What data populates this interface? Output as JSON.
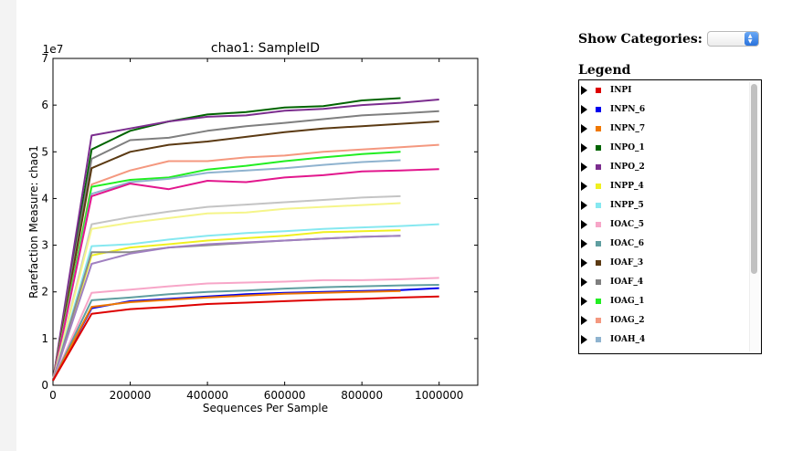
{
  "chart_data": {
    "type": "line",
    "title": "chao1: SampleID",
    "xlabel": "Sequences Per Sample",
    "ylabel": "Rarefaction Measure: chao1",
    "y_multiplier_label": "1e7",
    "xlim": [
      0,
      1100000
    ],
    "ylim": [
      0,
      7
    ],
    "xticks": [
      0,
      200000,
      400000,
      600000,
      800000,
      1000000
    ],
    "xtick_labels": [
      "0",
      "200000",
      "400000",
      "600000",
      "800000",
      "1000000"
    ],
    "yticks": [
      0,
      1,
      2,
      3,
      4,
      5,
      6,
      7
    ],
    "ytick_labels": [
      "0",
      "1",
      "2",
      "3",
      "4",
      "5",
      "6",
      "7"
    ],
    "grid": false,
    "series": [
      {
        "color": "#006400",
        "x": [
          0,
          100000,
          200000,
          300000,
          400000,
          500000,
          600000,
          700000,
          800000,
          900000
        ],
        "values": [
          0.1,
          5.05,
          5.45,
          5.65,
          5.8,
          5.85,
          5.95,
          5.98,
          6.1,
          6.15
        ]
      },
      {
        "color": "#7b2d8e",
        "x": [
          0,
          100000,
          200000,
          300000,
          400000,
          500000,
          600000,
          700000,
          800000,
          900000,
          1000000
        ],
        "values": [
          0.1,
          5.35,
          5.5,
          5.65,
          5.75,
          5.78,
          5.88,
          5.92,
          6.0,
          6.05,
          6.12
        ]
      },
      {
        "color": "#7f7f7f",
        "x": [
          0,
          100000,
          200000,
          300000,
          400000,
          500000,
          600000,
          700000,
          800000,
          900000,
          1000000
        ],
        "values": [
          0.1,
          4.85,
          5.25,
          5.3,
          5.45,
          5.55,
          5.62,
          5.7,
          5.78,
          5.82,
          5.87
        ]
      },
      {
        "color": "#5b3a13",
        "x": [
          0,
          100000,
          200000,
          300000,
          400000,
          500000,
          600000,
          700000,
          800000,
          900000,
          1000000
        ],
        "values": [
          0.1,
          4.65,
          5.0,
          5.15,
          5.22,
          5.32,
          5.42,
          5.5,
          5.55,
          5.6,
          5.65
        ]
      },
      {
        "color": "#f4987f",
        "x": [
          0,
          100000,
          200000,
          300000,
          400000,
          500000,
          600000,
          700000,
          800000,
          900000,
          1000000
        ],
        "values": [
          0.1,
          4.3,
          4.6,
          4.8,
          4.8,
          4.88,
          4.92,
          5.0,
          5.05,
          5.1,
          5.15
        ]
      },
      {
        "color": "#22ee22",
        "x": [
          0,
          100000,
          200000,
          300000,
          400000,
          500000,
          600000,
          700000,
          800000,
          900000
        ],
        "values": [
          0.1,
          4.25,
          4.4,
          4.45,
          4.62,
          4.7,
          4.8,
          4.88,
          4.95,
          5.0
        ]
      },
      {
        "color": "#8fb3cf",
        "x": [
          0,
          100000,
          200000,
          300000,
          400000,
          500000,
          600000,
          700000,
          800000,
          900000
        ],
        "values": [
          0.1,
          4.1,
          4.35,
          4.42,
          4.55,
          4.6,
          4.65,
          4.72,
          4.78,
          4.82
        ]
      },
      {
        "color": "#e2178d",
        "x": [
          0,
          100000,
          200000,
          300000,
          400000,
          500000,
          600000,
          700000,
          800000,
          900000,
          1000000
        ],
        "values": [
          0.1,
          4.05,
          4.32,
          4.2,
          4.38,
          4.35,
          4.45,
          4.5,
          4.58,
          4.6,
          4.63
        ]
      },
      {
        "color": "#c4c4c4",
        "x": [
          0,
          100000,
          200000,
          300000,
          400000,
          500000,
          600000,
          700000,
          800000,
          900000
        ],
        "values": [
          0.1,
          3.45,
          3.6,
          3.72,
          3.82,
          3.87,
          3.92,
          3.97,
          4.02,
          4.05
        ]
      },
      {
        "color": "#f5f58a",
        "x": [
          0,
          100000,
          200000,
          300000,
          400000,
          500000,
          600000,
          700000,
          800000,
          900000
        ],
        "values": [
          0.1,
          3.35,
          3.48,
          3.58,
          3.68,
          3.7,
          3.78,
          3.82,
          3.86,
          3.9
        ]
      },
      {
        "color": "#86e8f0",
        "x": [
          0,
          100000,
          200000,
          300000,
          400000,
          500000,
          600000,
          700000,
          800000,
          900000,
          1000000
        ],
        "values": [
          0.1,
          2.98,
          3.02,
          3.12,
          3.2,
          3.26,
          3.3,
          3.35,
          3.38,
          3.41,
          3.45
        ]
      },
      {
        "color": "#f0f020",
        "x": [
          0,
          100000,
          200000,
          300000,
          400000,
          500000,
          600000,
          700000,
          800000,
          900000
        ],
        "values": [
          0.1,
          2.78,
          2.95,
          3.02,
          3.1,
          3.15,
          3.2,
          3.28,
          3.3,
          3.32
        ]
      },
      {
        "color": "#8a8a8a",
        "x": [
          0,
          100000,
          200000,
          300000,
          400000,
          500000,
          600000,
          700000,
          800000,
          900000
        ],
        "values": [
          0.1,
          2.85,
          2.85,
          2.95,
          3.0,
          3.05,
          3.1,
          3.14,
          3.18,
          3.2
        ]
      },
      {
        "color": "#a080c0",
        "x": [
          0,
          100000,
          200000,
          300000,
          400000,
          500000,
          600000,
          700000,
          800000,
          900000
        ],
        "values": [
          0.1,
          2.6,
          2.82,
          2.95,
          3.02,
          3.06,
          3.1,
          3.14,
          3.18,
          3.2
        ]
      },
      {
        "color": "#f7a6c8",
        "x": [
          0,
          100000,
          200000,
          300000,
          400000,
          500000,
          600000,
          700000,
          800000,
          900000,
          1000000
        ],
        "values": [
          0.1,
          1.98,
          2.05,
          2.12,
          2.18,
          2.2,
          2.22,
          2.25,
          2.25,
          2.27,
          2.3
        ]
      },
      {
        "color": "#5f9ea0",
        "x": [
          0,
          100000,
          200000,
          300000,
          400000,
          500000,
          600000,
          700000,
          800000,
          900000,
          1000000
        ],
        "values": [
          0.1,
          1.82,
          1.88,
          1.95,
          2.0,
          2.03,
          2.07,
          2.1,
          2.12,
          2.14,
          2.15
        ]
      },
      {
        "color": "#0000ee",
        "x": [
          0,
          100000,
          200000,
          300000,
          400000,
          500000,
          600000,
          700000,
          800000,
          900000,
          1000000
        ],
        "values": [
          0.1,
          1.65,
          1.8,
          1.85,
          1.9,
          1.95,
          1.98,
          2.0,
          2.02,
          2.04,
          2.08
        ]
      },
      {
        "color": "#f07800",
        "x": [
          0,
          100000,
          200000,
          300000,
          400000,
          500000,
          600000,
          700000,
          800000,
          900000
        ],
        "values": [
          0.1,
          1.68,
          1.78,
          1.83,
          1.88,
          1.92,
          1.96,
          1.98,
          2.0,
          2.02
        ]
      },
      {
        "color": "#dd0000",
        "x": [
          0,
          100000,
          200000,
          300000,
          400000,
          500000,
          600000,
          700000,
          800000,
          900000,
          1000000
        ],
        "values": [
          0.1,
          1.53,
          1.63,
          1.68,
          1.74,
          1.77,
          1.8,
          1.83,
          1.85,
          1.88,
          1.9
        ]
      }
    ]
  },
  "controls": {
    "show_categories_label": "Show Categories:",
    "legend_title": "Legend"
  },
  "legend": {
    "items": [
      {
        "label": "INPI",
        "color": "#dd0000"
      },
      {
        "label": "INPN_6",
        "color": "#0000ee"
      },
      {
        "label": "INPN_7",
        "color": "#f07800"
      },
      {
        "label": "INPO_1",
        "color": "#006400"
      },
      {
        "label": "INPO_2",
        "color": "#7b2d8e"
      },
      {
        "label": "INPP_4",
        "color": "#f0f020"
      },
      {
        "label": "INPP_5",
        "color": "#86e8f0"
      },
      {
        "label": "IOAC_5",
        "color": "#f7a6c8"
      },
      {
        "label": "IOAC_6",
        "color": "#5f9ea0"
      },
      {
        "label": "IOAF_3",
        "color": "#5b3a13"
      },
      {
        "label": "IOAF_4",
        "color": "#7f7f7f"
      },
      {
        "label": "IOAG_1",
        "color": "#22ee22"
      },
      {
        "label": "IOAG_2",
        "color": "#f4987f"
      },
      {
        "label": "IOAH_4",
        "color": "#8fb3cf"
      }
    ]
  }
}
